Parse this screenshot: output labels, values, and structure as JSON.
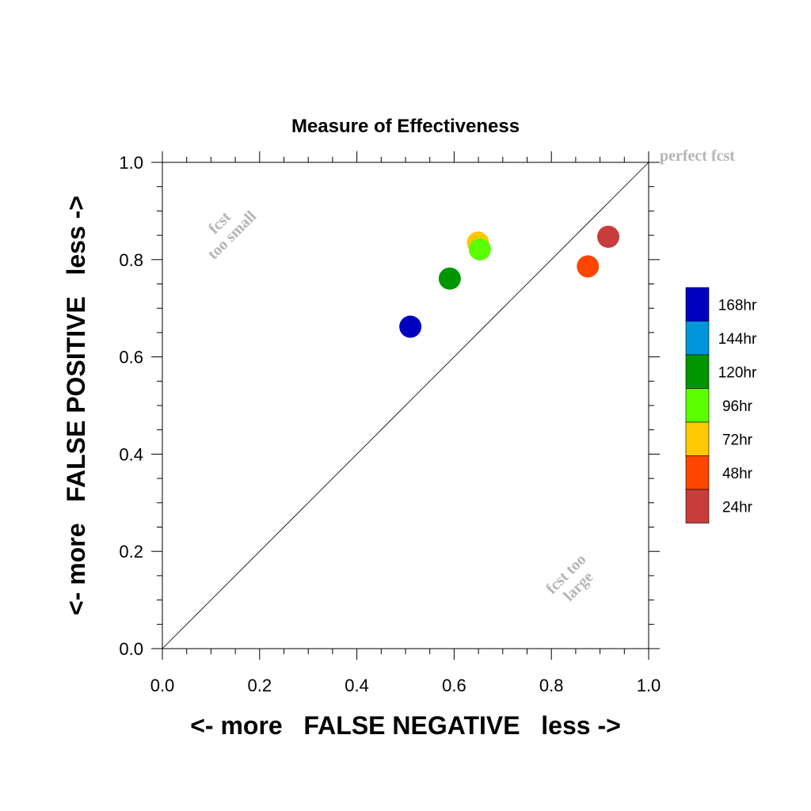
{
  "chart_data": {
    "type": "scatter",
    "title": "Measure of Effectiveness",
    "xlabel": "<- more   FALSE NEGATIVE   less ->",
    "ylabel": "<- more   FALSE POSITIVE   less ->",
    "xlim": [
      0.0,
      1.0
    ],
    "ylim": [
      0.0,
      1.0
    ],
    "xticks": [
      "0.0",
      "0.2",
      "0.4",
      "0.6",
      "0.8",
      "1.0"
    ],
    "yticks": [
      "0.0",
      "0.2",
      "0.4",
      "0.6",
      "0.8",
      "1.0"
    ],
    "grid": false,
    "reference_line": "diagonal y = x",
    "annotations": {
      "perfect": "perfect fcst",
      "too_small": [
        "fcst",
        "too small"
      ],
      "too_large": [
        "fcst too",
        "large"
      ]
    },
    "legend": {
      "placement": "right",
      "entries": [
        {
          "label": "168hr",
          "color": "#0000c0"
        },
        {
          "label": "144hr",
          "color": "#0096dc"
        },
        {
          "label": "120hr",
          "color": "#009600"
        },
        {
          "label": "96hr",
          "color": "#5aff00"
        },
        {
          "label": "72hr",
          "color": "#ffc800"
        },
        {
          "label": "48hr",
          "color": "#ff4600"
        },
        {
          "label": "24hr",
          "color": "#c83c3c"
        }
      ]
    },
    "points": [
      {
        "series": "168hr",
        "x": 0.51,
        "y": 0.662,
        "color": "#0000c0"
      },
      {
        "series": "120hr",
        "x": 0.591,
        "y": 0.761,
        "color": "#009600"
      },
      {
        "series": "72hr",
        "x": 0.649,
        "y": 0.835,
        "color": "#ffc800"
      },
      {
        "series": "96hr",
        "x": 0.653,
        "y": 0.821,
        "color": "#5aff00"
      },
      {
        "series": "48hr",
        "x": 0.875,
        "y": 0.786,
        "color": "#ff4600"
      },
      {
        "series": "24hr",
        "x": 0.917,
        "y": 0.847,
        "color": "#c83c3c"
      }
    ]
  }
}
